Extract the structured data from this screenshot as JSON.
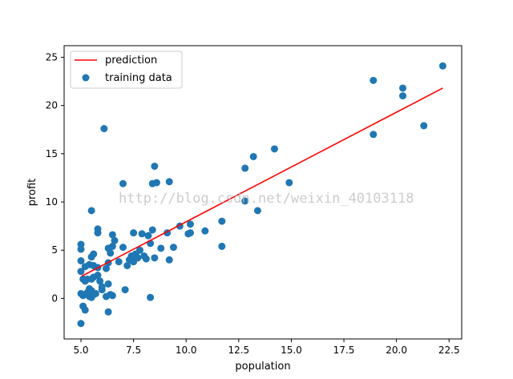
{
  "chart_data": {
    "type": "scatter",
    "xlabel": "population",
    "ylabel": "profit",
    "xlim": [
      4.2,
      23.1
    ],
    "ylim": [
      -4.2,
      26.2
    ],
    "xticks": [
      "5.0",
      "7.5",
      "10.0",
      "12.5",
      "15.0",
      "17.5",
      "20.0",
      "22.5"
    ],
    "yticks": [
      "0",
      "5",
      "10",
      "15",
      "20",
      "25"
    ],
    "grid": false,
    "legend_position": "top-left",
    "watermark": "http://blog.csdn.net/weixin_40103118",
    "series": [
      {
        "name": "prediction",
        "kind": "line",
        "color": "#ff0000",
        "x": [
          5.03,
          22.2
        ],
        "y": [
          2.3,
          21.8
        ]
      },
      {
        "name": "training data",
        "kind": "scatter",
        "color": "#1f77b4",
        "points": [
          [
            5.0,
            -2.6
          ],
          [
            5.1,
            -0.8
          ],
          [
            5.2,
            -1.2
          ],
          [
            5.0,
            0.5
          ],
          [
            5.1,
            0.3
          ],
          [
            5.3,
            0.6
          ],
          [
            5.4,
            0.2
          ],
          [
            5.5,
            0.1
          ],
          [
            5.6,
            0.4
          ],
          [
            5.7,
            0.5
          ],
          [
            5.4,
            1.0
          ],
          [
            5.5,
            0.8
          ],
          [
            5.3,
            2.0
          ],
          [
            5.1,
            2.0
          ],
          [
            5.2,
            1.8
          ],
          [
            5.5,
            2.0
          ],
          [
            5.6,
            2.2
          ],
          [
            5.8,
            2.4
          ],
          [
            5.0,
            2.8
          ],
          [
            5.2,
            3.3
          ],
          [
            5.4,
            3.5
          ],
          [
            5.6,
            3.4
          ],
          [
            5.8,
            3.2
          ],
          [
            5.0,
            3.9
          ],
          [
            5.5,
            4.3
          ],
          [
            5.6,
            4.6
          ],
          [
            5.0,
            5.1
          ],
          [
            5.0,
            5.6
          ],
          [
            5.8,
            6.8
          ],
          [
            5.8,
            7.2
          ],
          [
            5.9,
            1.8
          ],
          [
            6.0,
            1.2
          ],
          [
            6.0,
            0.9
          ],
          [
            6.2,
            0.2
          ],
          [
            6.3,
            1.5
          ],
          [
            6.4,
            0.4
          ],
          [
            6.5,
            0.3
          ],
          [
            6.3,
            -1.4
          ],
          [
            6.2,
            3.1
          ],
          [
            6.3,
            3.7
          ],
          [
            6.4,
            4.7
          ],
          [
            6.3,
            5.2
          ],
          [
            6.5,
            5.4
          ],
          [
            6.6,
            6.0
          ],
          [
            6.5,
            6.6
          ],
          [
            6.1,
            17.6
          ],
          [
            5.5,
            9.1
          ],
          [
            6.8,
            3.8
          ],
          [
            7.0,
            5.3
          ],
          [
            7.1,
            0.9
          ],
          [
            7.2,
            3.4
          ],
          [
            7.3,
            4.0
          ],
          [
            7.4,
            4.4
          ],
          [
            7.5,
            4.1
          ],
          [
            7.5,
            3.8
          ],
          [
            7.6,
            4.6
          ],
          [
            7.7,
            4.2
          ],
          [
            7.8,
            5.0
          ],
          [
            7.5,
            6.8
          ],
          [
            7.9,
            6.7
          ],
          [
            8.0,
            4.4
          ],
          [
            8.1,
            4.1
          ],
          [
            8.2,
            6.5
          ],
          [
            8.3,
            5.7
          ],
          [
            8.4,
            7.1
          ],
          [
            8.3,
            0.1
          ],
          [
            8.5,
            4.2
          ],
          [
            8.8,
            5.2
          ],
          [
            9.1,
            6.8
          ],
          [
            9.2,
            4.0
          ],
          [
            9.4,
            5.3
          ],
          [
            9.7,
            7.5
          ],
          [
            10.1,
            6.7
          ],
          [
            10.2,
            7.7
          ],
          [
            10.2,
            6.8
          ],
          [
            10.9,
            7.0
          ],
          [
            11.7,
            8.0
          ],
          [
            11.7,
            5.4
          ],
          [
            7.0,
            11.9
          ],
          [
            8.4,
            11.9
          ],
          [
            8.6,
            12.0
          ],
          [
            8.5,
            13.7
          ],
          [
            9.2,
            12.1
          ],
          [
            12.8,
            13.5
          ],
          [
            12.8,
            10.1
          ],
          [
            13.2,
            14.7
          ],
          [
            13.4,
            9.1
          ],
          [
            14.2,
            15.5
          ],
          [
            14.9,
            12.0
          ],
          [
            18.9,
            22.6
          ],
          [
            18.9,
            17.0
          ],
          [
            20.3,
            21.8
          ],
          [
            20.3,
            21.0
          ],
          [
            21.3,
            17.9
          ],
          [
            22.2,
            24.1
          ]
        ]
      }
    ]
  }
}
